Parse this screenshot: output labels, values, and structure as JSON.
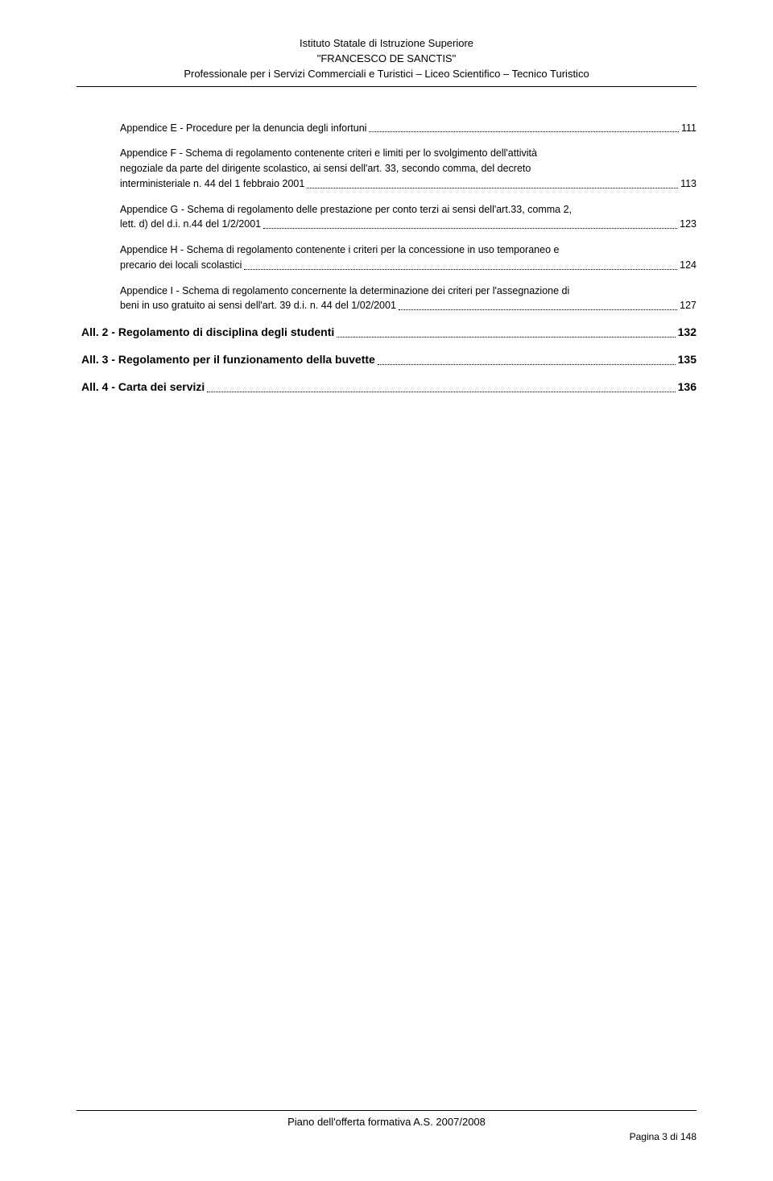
{
  "header": {
    "line1": "Istituto Statale di Istruzione Superiore",
    "line2": "\"FRANCESCO DE SANCTIS\"",
    "line3": "Professionale per i Servizi Commerciali e Turistici – Liceo Scientifico – Tecnico Turistico"
  },
  "toc": [
    {
      "indent": true,
      "bold": false,
      "lines": [
        "Appendice E  -  Procedure per la denuncia degli infortuni"
      ],
      "page": "111"
    },
    {
      "indent": true,
      "bold": false,
      "lines": [
        "Appendice F  -  Schema di regolamento contenente criteri e limiti per lo svolgimento dell'attività",
        "negoziale da parte del dirigente scolastico, ai sensi dell'art. 33, secondo comma, del decreto",
        "interministeriale n. 44 del 1 febbraio 2001"
      ],
      "page": "113"
    },
    {
      "indent": true,
      "bold": false,
      "lines": [
        "Appendice G  -  Schema di regolamento delle prestazione per conto terzi ai sensi dell'art.33, comma 2,",
        "lett. d) del d.i. n.44 del 1/2/2001"
      ],
      "page": "123"
    },
    {
      "indent": true,
      "bold": false,
      "lines": [
        "Appendice H  -  Schema di regolamento contenente i criteri per la concessione in uso temporaneo e",
        "precario dei locali scolastici"
      ],
      "page": "124"
    },
    {
      "indent": true,
      "bold": false,
      "lines": [
        "Appendice I  -  Schema di regolamento concernente la determinazione dei criteri per l'assegnazione di",
        "beni in uso gratuito ai sensi dell'art. 39 d.i. n. 44 del 1/02/2001"
      ],
      "page": "127"
    },
    {
      "indent": false,
      "bold": true,
      "section": true,
      "lines": [
        "All. 2  -   Regolamento di disciplina degli studenti"
      ],
      "page": "132"
    },
    {
      "indent": false,
      "bold": true,
      "section": true,
      "lines": [
        "All. 3  -  Regolamento per il funzionamento della buvette"
      ],
      "page": "135"
    },
    {
      "indent": false,
      "bold": true,
      "section": true,
      "lines": [
        "All. 4  -  Carta dei servizi"
      ],
      "page": "136"
    }
  ],
  "footer": {
    "title": "Piano dell'offerta formativa A.S. 2007/2008",
    "page": "Pagina 3 di 148"
  }
}
